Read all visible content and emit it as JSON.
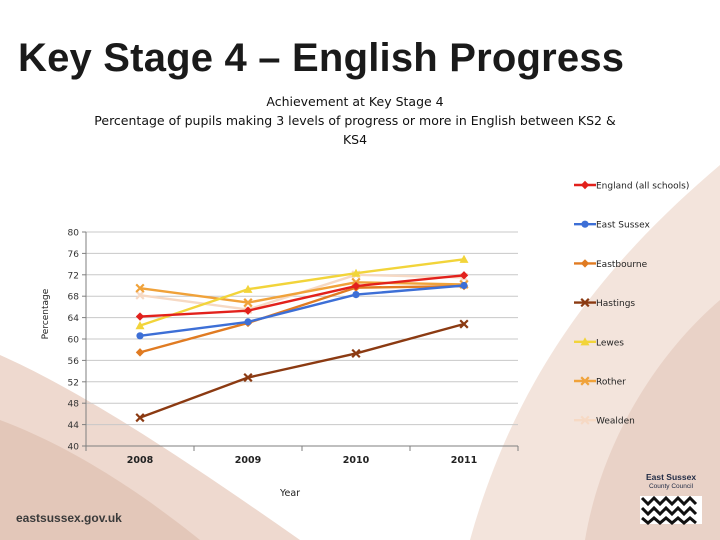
{
  "slide": {
    "title": "Key Stage 4 – English Progress",
    "footer_url": "eastsussex.gov.uk",
    "logo": {
      "line1": "East Sussex",
      "line2": "County Council"
    }
  },
  "colors": {
    "background_shape": "#e9d2c7",
    "background_shape_light": "#f3e4dc",
    "grid": "#c8c8c8",
    "axis": "#7f7f7f"
  },
  "chart_data": {
    "type": "line",
    "title_lines": [
      "Achievement at Key Stage 4",
      "Percentage of pupils making 3 levels of progress or more in English between KS2 &",
      "KS4"
    ],
    "xlabel": "Year",
    "ylabel": "Percentage",
    "categories": [
      "2008",
      "2009",
      "2010",
      "2011"
    ],
    "ylim": [
      40,
      80
    ],
    "yticks": [
      40,
      44,
      48,
      52,
      56,
      60,
      64,
      68,
      72,
      76,
      80
    ],
    "grid": true,
    "legend_position": "right",
    "series": [
      {
        "name": "England (all schools)",
        "color": "#e2211c",
        "marker": "diamond",
        "values": [
          64.2,
          65.3,
          69.9,
          71.9
        ]
      },
      {
        "name": "East Sussex",
        "color": "#3d6fd6",
        "marker": "circle",
        "values": [
          60.6,
          63.2,
          68.3,
          70.0
        ]
      },
      {
        "name": "Eastbourne",
        "color": "#e07b22",
        "marker": "diamond",
        "values": [
          57.5,
          63.0,
          69.6,
          69.9
        ]
      },
      {
        "name": "Hastings",
        "color": "#8b3a12",
        "marker": "x",
        "values": [
          45.3,
          52.8,
          57.3,
          62.8
        ]
      },
      {
        "name": "Lewes",
        "color": "#f2d43a",
        "marker": "triangle",
        "values": [
          62.5,
          69.3,
          72.3,
          74.9
        ]
      },
      {
        "name": "Rother",
        "color": "#f0a23a",
        "marker": "x",
        "values": [
          69.5,
          66.8,
          70.6,
          70.2
        ]
      },
      {
        "name": "Wealden",
        "color": "#f6d9c4",
        "marker": "x",
        "values": [
          68.2,
          65.5,
          72.0,
          71.5
        ]
      }
    ]
  }
}
